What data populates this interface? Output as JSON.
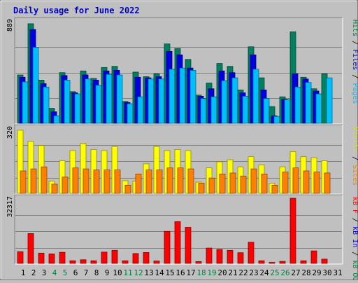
{
  "chart_data": {
    "type": "bar",
    "title": "Daily usage for June 2022",
    "categories": [
      "1",
      "2",
      "3",
      "4",
      "5",
      "6",
      "7",
      "8",
      "9",
      "10",
      "11",
      "12",
      "13",
      "14",
      "15",
      "16",
      "17",
      "18",
      "19",
      "20",
      "21",
      "22",
      "23",
      "24",
      "25",
      "26",
      "27",
      "28",
      "29",
      "30",
      "31"
    ],
    "weekend_days": [
      "4",
      "5",
      "11",
      "12",
      "18",
      "19",
      "25",
      "26"
    ],
    "panels": [
      {
        "max_label": "889",
        "right_labels": [
          {
            "text": "Hits",
            "color": "#008040"
          },
          {
            "text": " / ",
            "color": "#000000"
          },
          {
            "text": "Files",
            "color": "#0000ff"
          },
          {
            "text": " / ",
            "color": "#000000"
          },
          {
            "text": "Pages",
            "color": "#00bfff"
          }
        ],
        "ylim": [
          0,
          889
        ],
        "series": [
          {
            "name": "Hits",
            "color": "#008060",
            "values": [
              420,
              865,
              375,
              130,
              440,
              275,
              455,
              390,
              485,
              495,
              190,
              445,
              405,
              430,
              690,
              650,
              555,
              245,
              350,
              520,
              495,
              290,
              665,
              395,
              145,
              230,
              795,
              400,
              300,
              430,
              0
            ]
          },
          {
            "name": "Files",
            "color": "#0000e0",
            "values": [
              400,
              815,
              345,
              100,
              415,
              265,
              420,
              375,
              455,
              460,
              180,
              400,
              395,
              405,
              625,
              595,
              480,
              235,
              300,
              455,
              440,
              265,
              595,
              290,
              65,
              210,
              430,
              385,
              280,
              0,
              0
            ]
          },
          {
            "name": "Pages",
            "color": "#00bfff",
            "values": [
              360,
              660,
              315,
              65,
              375,
              255,
              385,
              330,
              425,
              420,
              170,
              230,
              385,
              385,
              470,
              480,
              460,
              215,
              230,
              370,
              395,
              235,
              470,
              215,
              60,
              205,
              315,
              355,
              255,
              395,
              0
            ]
          }
        ]
      },
      {
        "max_label": "320",
        "right_labels": [
          {
            "text": "Visits",
            "color": "#e0e000"
          },
          {
            "text": " / ",
            "color": "#000000"
          },
          {
            "text": "Sites",
            "color": "#ff8000"
          }
        ],
        "ylim": [
          0,
          320
        ],
        "series": [
          {
            "name": "Visits",
            "color": "#ffff00",
            "values": [
              310,
              255,
              235,
              60,
              160,
              210,
              245,
              215,
              210,
              230,
              62,
              60,
              145,
              230,
              210,
              215,
              210,
              55,
              125,
              155,
              165,
              130,
              180,
              140,
              50,
              130,
              205,
              180,
              175,
              160,
              0
            ]
          },
          {
            "name": "Sites",
            "color": "#ff8000",
            "values": [
              110,
              120,
              130,
              45,
              80,
              125,
              120,
              115,
              115,
              115,
              40,
              95,
              115,
              115,
              125,
              125,
              120,
              50,
              75,
              95,
              100,
              85,
              120,
              95,
              40,
              105,
              125,
              110,
              105,
              100,
              0
            ]
          }
        ]
      },
      {
        "max_label": "32317",
        "right_labels": [
          {
            "text": "kB F",
            "color": "#ff0000"
          },
          {
            "text": " / ",
            "color": "#000000"
          },
          {
            "text": "kB In",
            "color": "#0000ff"
          },
          {
            "text": " / ",
            "color": "#000000"
          },
          {
            "text": "kB Out",
            "color": "#008040"
          }
        ],
        "ylim": [
          0,
          32317
        ],
        "series": [
          {
            "name": "kB F",
            "color": "#ff0000",
            "values": [
              5800,
              14800,
              5100,
              4700,
              5500,
              1300,
              1800,
              1300,
              5600,
              6500,
              1300,
              4900,
              5400,
              1200,
              15900,
              20700,
              17900,
              900,
              7600,
              6900,
              6500,
              5300,
              10500,
              1300,
              500,
              1000,
              32317,
              1300,
              6200,
              2100,
              0
            ]
          }
        ]
      }
    ]
  }
}
